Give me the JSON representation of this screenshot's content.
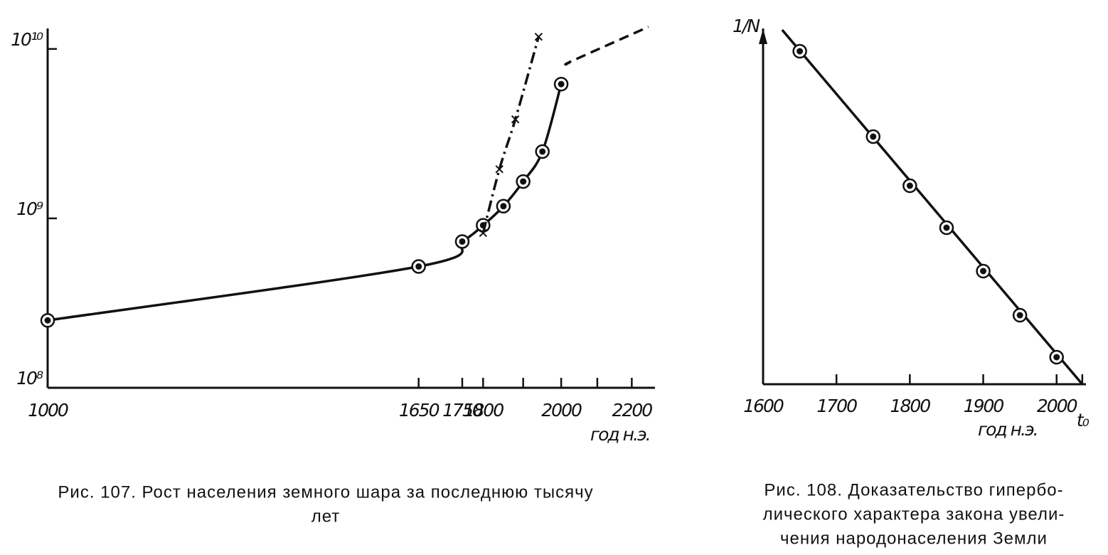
{
  "chart_data": [
    {
      "type": "line",
      "x_label": "год н.э.",
      "xscale": "log",
      "xlim": [
        1000,
        2270
      ],
      "xticks": [
        1000,
        1650,
        1750,
        1800,
        2000,
        2200
      ],
      "minor_xticks": [
        1900,
        2100
      ],
      "yscale": "log",
      "ylim": [
        100000000,
        14000000000
      ],
      "yticks": [
        {
          "value": 100000000,
          "label": "10⁸"
        },
        {
          "value": 1000000000,
          "label": "10⁹"
        },
        {
          "value": 10000000000,
          "label": "10¹⁰"
        }
      ],
      "series": [
        {
          "color": "#111111",
          "style": "solid",
          "marker": "circle-dot",
          "x": [
            1000,
            1650,
            1750,
            1800,
            1850,
            1900,
            1950,
            2000
          ],
          "values": [
            250000000,
            520000000,
            730000000,
            910000000,
            1180000000,
            1650000000,
            2480000000,
            6200000000
          ]
        },
        {
          "color": "#111111",
          "style": "dashed",
          "marker": "none",
          "x": [
            2020,
            2030,
            2250
          ],
          "values": [
            8200000000,
            8500000000,
            13500000000
          ]
        },
        {
          "color": "#111111",
          "style": "dash-dot",
          "marker": "cross",
          "x": [
            1800,
            1840,
            1880,
            1940
          ],
          "values": [
            820000000,
            1950000000,
            3840000000,
            11800000000
          ]
        }
      ],
      "caption": [
        "Рис. 107. Рост населения земного шара за последнюю тысячу",
        "лет"
      ]
    },
    {
      "type": "line",
      "x_label": "год н.э.",
      "y_label": "1/N",
      "xscale": "linear",
      "xlim": [
        1600,
        2040
      ],
      "xticks": [
        1600,
        1700,
        1800,
        1900,
        2000,
        {
          "value": 2035,
          "label": "t₀"
        }
      ],
      "yscale": "linear",
      "ylim": [
        0,
        1
      ],
      "series": [
        {
          "color": "#111111",
          "style": "solid",
          "marker": "none",
          "x": [
            1626,
            2035
          ],
          "values": [
            0.996,
            0
          ]
        },
        {
          "color": "#111111",
          "style": "none",
          "marker": "circle-dot",
          "x": [
            1650,
            1750,
            1800,
            1850,
            1900,
            1950,
            2000
          ],
          "values": [
            0.936,
            0.696,
            0.558,
            0.44,
            0.318,
            0.194,
            0.076
          ]
        }
      ],
      "caption": [
        "Рис. 108. Доказательство гипербо-",
        "лического характера закона увели-",
        "чения народонаселения Земли"
      ]
    }
  ]
}
